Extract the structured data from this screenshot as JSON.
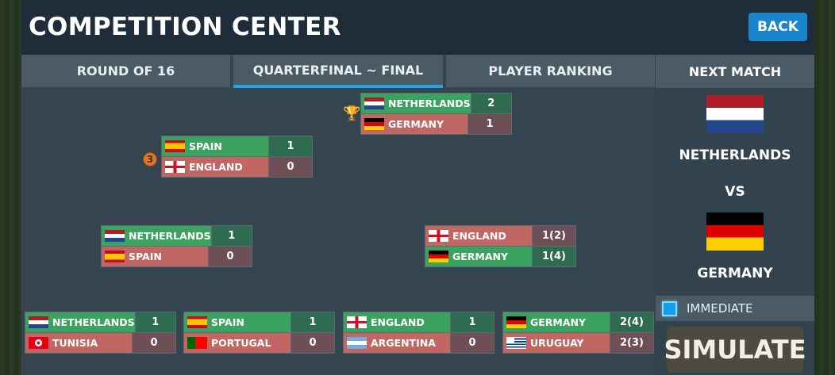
{
  "header": {
    "title": "COMPETITION CENTER",
    "back_label": "BACK"
  },
  "tabs": [
    {
      "label": "ROUND OF 16"
    },
    {
      "label": "QUARTERFINAL ~ FINAL",
      "active": true
    },
    {
      "label": "PLAYER RANKING"
    }
  ],
  "next_match": {
    "heading": "NEXT MATCH",
    "home": "NETHERLANDS",
    "vs": "VS",
    "away": "GERMANY",
    "immediate_label": "IMMEDIATE",
    "immediate_checked": true,
    "simulate_label": "SIMULATE"
  },
  "bracket": {
    "final": {
      "icon": "trophy-icon",
      "teams": [
        {
          "name": "NETHERLANDS",
          "flag": "ned",
          "score": "2",
          "winner": true
        },
        {
          "name": "GERMANY",
          "flag": "ger",
          "score": "1",
          "winner": false
        }
      ]
    },
    "third_place": {
      "icon": "bronze-medal-icon",
      "medal_text": "3",
      "teams": [
        {
          "name": "SPAIN",
          "flag": "esp",
          "score": "1",
          "winner": true
        },
        {
          "name": "ENGLAND",
          "flag": "eng",
          "score": "0",
          "winner": false
        }
      ]
    },
    "semifinals": [
      {
        "teams": [
          {
            "name": "NETHERLANDS",
            "flag": "ned",
            "score": "1",
            "winner": true
          },
          {
            "name": "SPAIN",
            "flag": "esp",
            "score": "0",
            "winner": false
          }
        ]
      },
      {
        "teams": [
          {
            "name": "ENGLAND",
            "flag": "eng",
            "score": "1(2)",
            "winner": false
          },
          {
            "name": "GERMANY",
            "flag": "ger",
            "score": "1(4)",
            "winner": true
          }
        ]
      }
    ],
    "quarterfinals": [
      {
        "teams": [
          {
            "name": "NETHERLANDS",
            "flag": "ned",
            "score": "1",
            "winner": true
          },
          {
            "name": "TUNISIA",
            "flag": "tun",
            "score": "0",
            "winner": false
          }
        ]
      },
      {
        "teams": [
          {
            "name": "SPAIN",
            "flag": "esp",
            "score": "1",
            "winner": true
          },
          {
            "name": "PORTUGAL",
            "flag": "por",
            "score": "0",
            "winner": false
          }
        ]
      },
      {
        "teams": [
          {
            "name": "ENGLAND",
            "flag": "eng",
            "score": "1",
            "winner": true
          },
          {
            "name": "ARGENTINA",
            "flag": "arg",
            "score": "0",
            "winner": false
          }
        ]
      },
      {
        "teams": [
          {
            "name": "GERMANY",
            "flag": "ger",
            "score": "2(4)",
            "winner": true
          },
          {
            "name": "URUGUAY",
            "flag": "uru",
            "score": "2(3)",
            "winner": false
          }
        ]
      }
    ]
  },
  "colors": {
    "winner": "#3ca25f",
    "loser": "#c06764",
    "accent": "#1ea6e6",
    "back_button": "#1a84cc"
  }
}
